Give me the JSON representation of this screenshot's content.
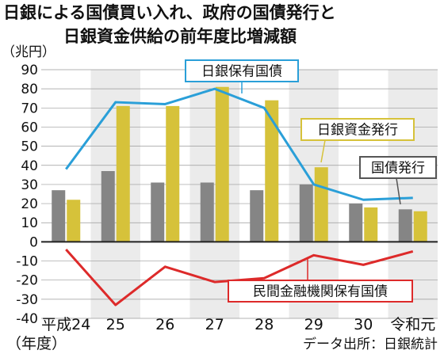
{
  "title_line1": "日銀による国債買い入れ、政府の国債発行と",
  "title_line2": "日銀資金供給の前年度比増減額",
  "unit_label": "（兆円）",
  "x_axis_note": "（年度）",
  "source": "データ出所：日銀統計",
  "colors": {
    "holdings_line": "#2a9fd8",
    "funds_bar": "#d6c23a",
    "issuance_bar": "#858585",
    "private_line": "#dd2a2a",
    "band": "#ebebeb"
  },
  "chart_data": {
    "type": "bar+line",
    "categories": [
      "平成24",
      "25",
      "26",
      "27",
      "28",
      "29",
      "30",
      "令和元"
    ],
    "ylim": [
      -40,
      90
    ],
    "yticks": [
      90,
      80,
      70,
      60,
      50,
      40,
      30,
      20,
      10,
      0,
      -10,
      -20,
      -30,
      -40
    ],
    "grid": true,
    "series": [
      {
        "name": "日銀資金発行",
        "type": "bar",
        "values": [
          22,
          71,
          71,
          81,
          74,
          39,
          18,
          16
        ]
      },
      {
        "name": "国債発行",
        "type": "bar",
        "values": [
          27,
          37,
          31,
          31,
          27,
          30,
          20,
          17
        ]
      },
      {
        "name": "日銀保有国債",
        "type": "line",
        "values": [
          38,
          73,
          72,
          80,
          70,
          30,
          22,
          23
        ]
      },
      {
        "name": "民間金融機関保有国債",
        "type": "line",
        "values": [
          -4,
          -33,
          -13,
          -21,
          -19,
          -7,
          -12,
          -5
        ]
      }
    ]
  }
}
